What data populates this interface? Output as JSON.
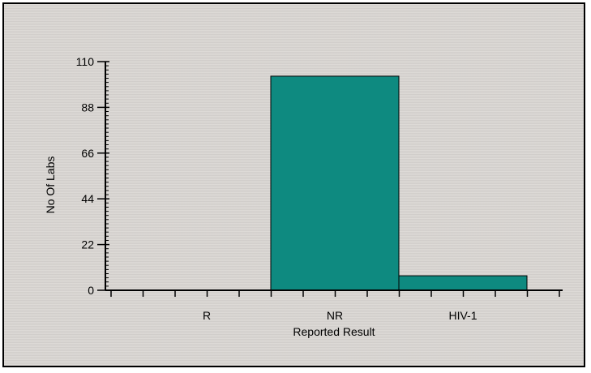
{
  "chart_data": {
    "type": "bar",
    "categories": [
      "R",
      "NR",
      "HIV-1"
    ],
    "values": [
      0,
      103,
      7
    ],
    "xlabel": "Reported Result",
    "ylabel": "No Of Labs",
    "ylim": [
      0,
      110
    ],
    "yticks": [
      "0",
      "22",
      "44",
      "66",
      "88",
      "110"
    ],
    "grid": false,
    "bar_color": "#0e8a80",
    "background_color": "#d9d6d2"
  }
}
